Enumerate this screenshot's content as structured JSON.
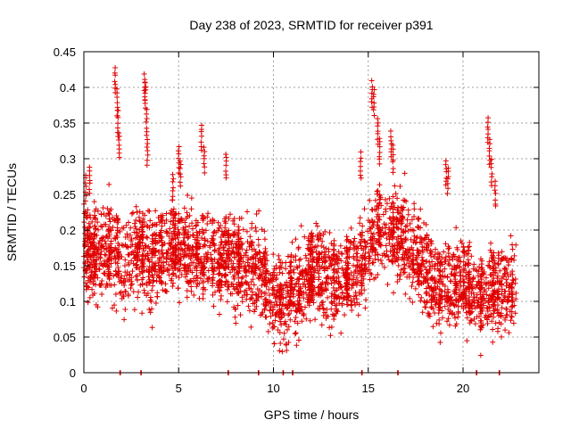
{
  "chart_data": {
    "type": "scatter",
    "title": "Day 238 of 2023, SRMTID for receiver p391",
    "xlabel": "GPS time / hours",
    "ylabel": "SRMTID / TECUs",
    "xlim": [
      0,
      24
    ],
    "ylim": [
      0,
      0.45
    ],
    "xticks": [
      0,
      5,
      10,
      15,
      20
    ],
    "yticks": [
      0,
      0.05,
      0.1,
      0.15,
      0.2,
      0.25,
      0.3,
      0.35,
      0.4,
      0.45
    ],
    "grid": true,
    "marker": "+",
    "color": "#e00000",
    "trend": [
      [
        0.0,
        0.18
      ],
      [
        0.5,
        0.16
      ],
      [
        1.0,
        0.17
      ],
      [
        1.5,
        0.17
      ],
      [
        2.0,
        0.15
      ],
      [
        2.5,
        0.16
      ],
      [
        3.0,
        0.17
      ],
      [
        3.5,
        0.15
      ],
      [
        4.0,
        0.16
      ],
      [
        4.5,
        0.17
      ],
      [
        5.0,
        0.18
      ],
      [
        5.5,
        0.17
      ],
      [
        6.0,
        0.16
      ],
      [
        6.5,
        0.17
      ],
      [
        7.0,
        0.15
      ],
      [
        7.5,
        0.16
      ],
      [
        8.0,
        0.15
      ],
      [
        8.5,
        0.15
      ],
      [
        9.0,
        0.14
      ],
      [
        9.5,
        0.13
      ],
      [
        10.0,
        0.11
      ],
      [
        10.5,
        0.1
      ],
      [
        11.0,
        0.11
      ],
      [
        11.5,
        0.12
      ],
      [
        12.0,
        0.14
      ],
      [
        12.5,
        0.15
      ],
      [
        13.0,
        0.13
      ],
      [
        13.5,
        0.12
      ],
      [
        14.0,
        0.13
      ],
      [
        14.5,
        0.14
      ],
      [
        15.0,
        0.17
      ],
      [
        15.5,
        0.21
      ],
      [
        16.0,
        0.19
      ],
      [
        16.5,
        0.19
      ],
      [
        17.0,
        0.18
      ],
      [
        17.5,
        0.17
      ],
      [
        18.0,
        0.14
      ],
      [
        18.5,
        0.12
      ],
      [
        19.0,
        0.12
      ],
      [
        19.5,
        0.12
      ],
      [
        20.0,
        0.13
      ],
      [
        20.5,
        0.11
      ],
      [
        21.0,
        0.1
      ],
      [
        21.5,
        0.12
      ],
      [
        22.0,
        0.11
      ],
      [
        22.5,
        0.12
      ],
      [
        22.8,
        0.11
      ]
    ],
    "spikes": [
      [
        0.1,
        0.28
      ],
      [
        0.3,
        0.29
      ],
      [
        1.65,
        0.43
      ],
      [
        1.75,
        0.4
      ],
      [
        1.8,
        0.37
      ],
      [
        1.85,
        0.34
      ],
      [
        3.2,
        0.42
      ],
      [
        3.25,
        0.41
      ],
      [
        3.3,
        0.37
      ],
      [
        3.35,
        0.33
      ],
      [
        4.7,
        0.28
      ],
      [
        5.0,
        0.32
      ],
      [
        5.1,
        0.3
      ],
      [
        6.2,
        0.35
      ],
      [
        6.35,
        0.32
      ],
      [
        7.5,
        0.31
      ],
      [
        14.6,
        0.31
      ],
      [
        15.2,
        0.41
      ],
      [
        15.3,
        0.4
      ],
      [
        15.5,
        0.36
      ],
      [
        15.6,
        0.33
      ],
      [
        16.2,
        0.34
      ],
      [
        16.3,
        0.32
      ],
      [
        19.1,
        0.3
      ],
      [
        19.2,
        0.29
      ],
      [
        21.3,
        0.36
      ],
      [
        21.4,
        0.33
      ],
      [
        21.5,
        0.3
      ],
      [
        21.7,
        0.27
      ]
    ],
    "zero_points": [
      1.9,
      3.0,
      7.6,
      9.2,
      10.5,
      11.0,
      14.65,
      16.55,
      20.7,
      21.9
    ]
  }
}
